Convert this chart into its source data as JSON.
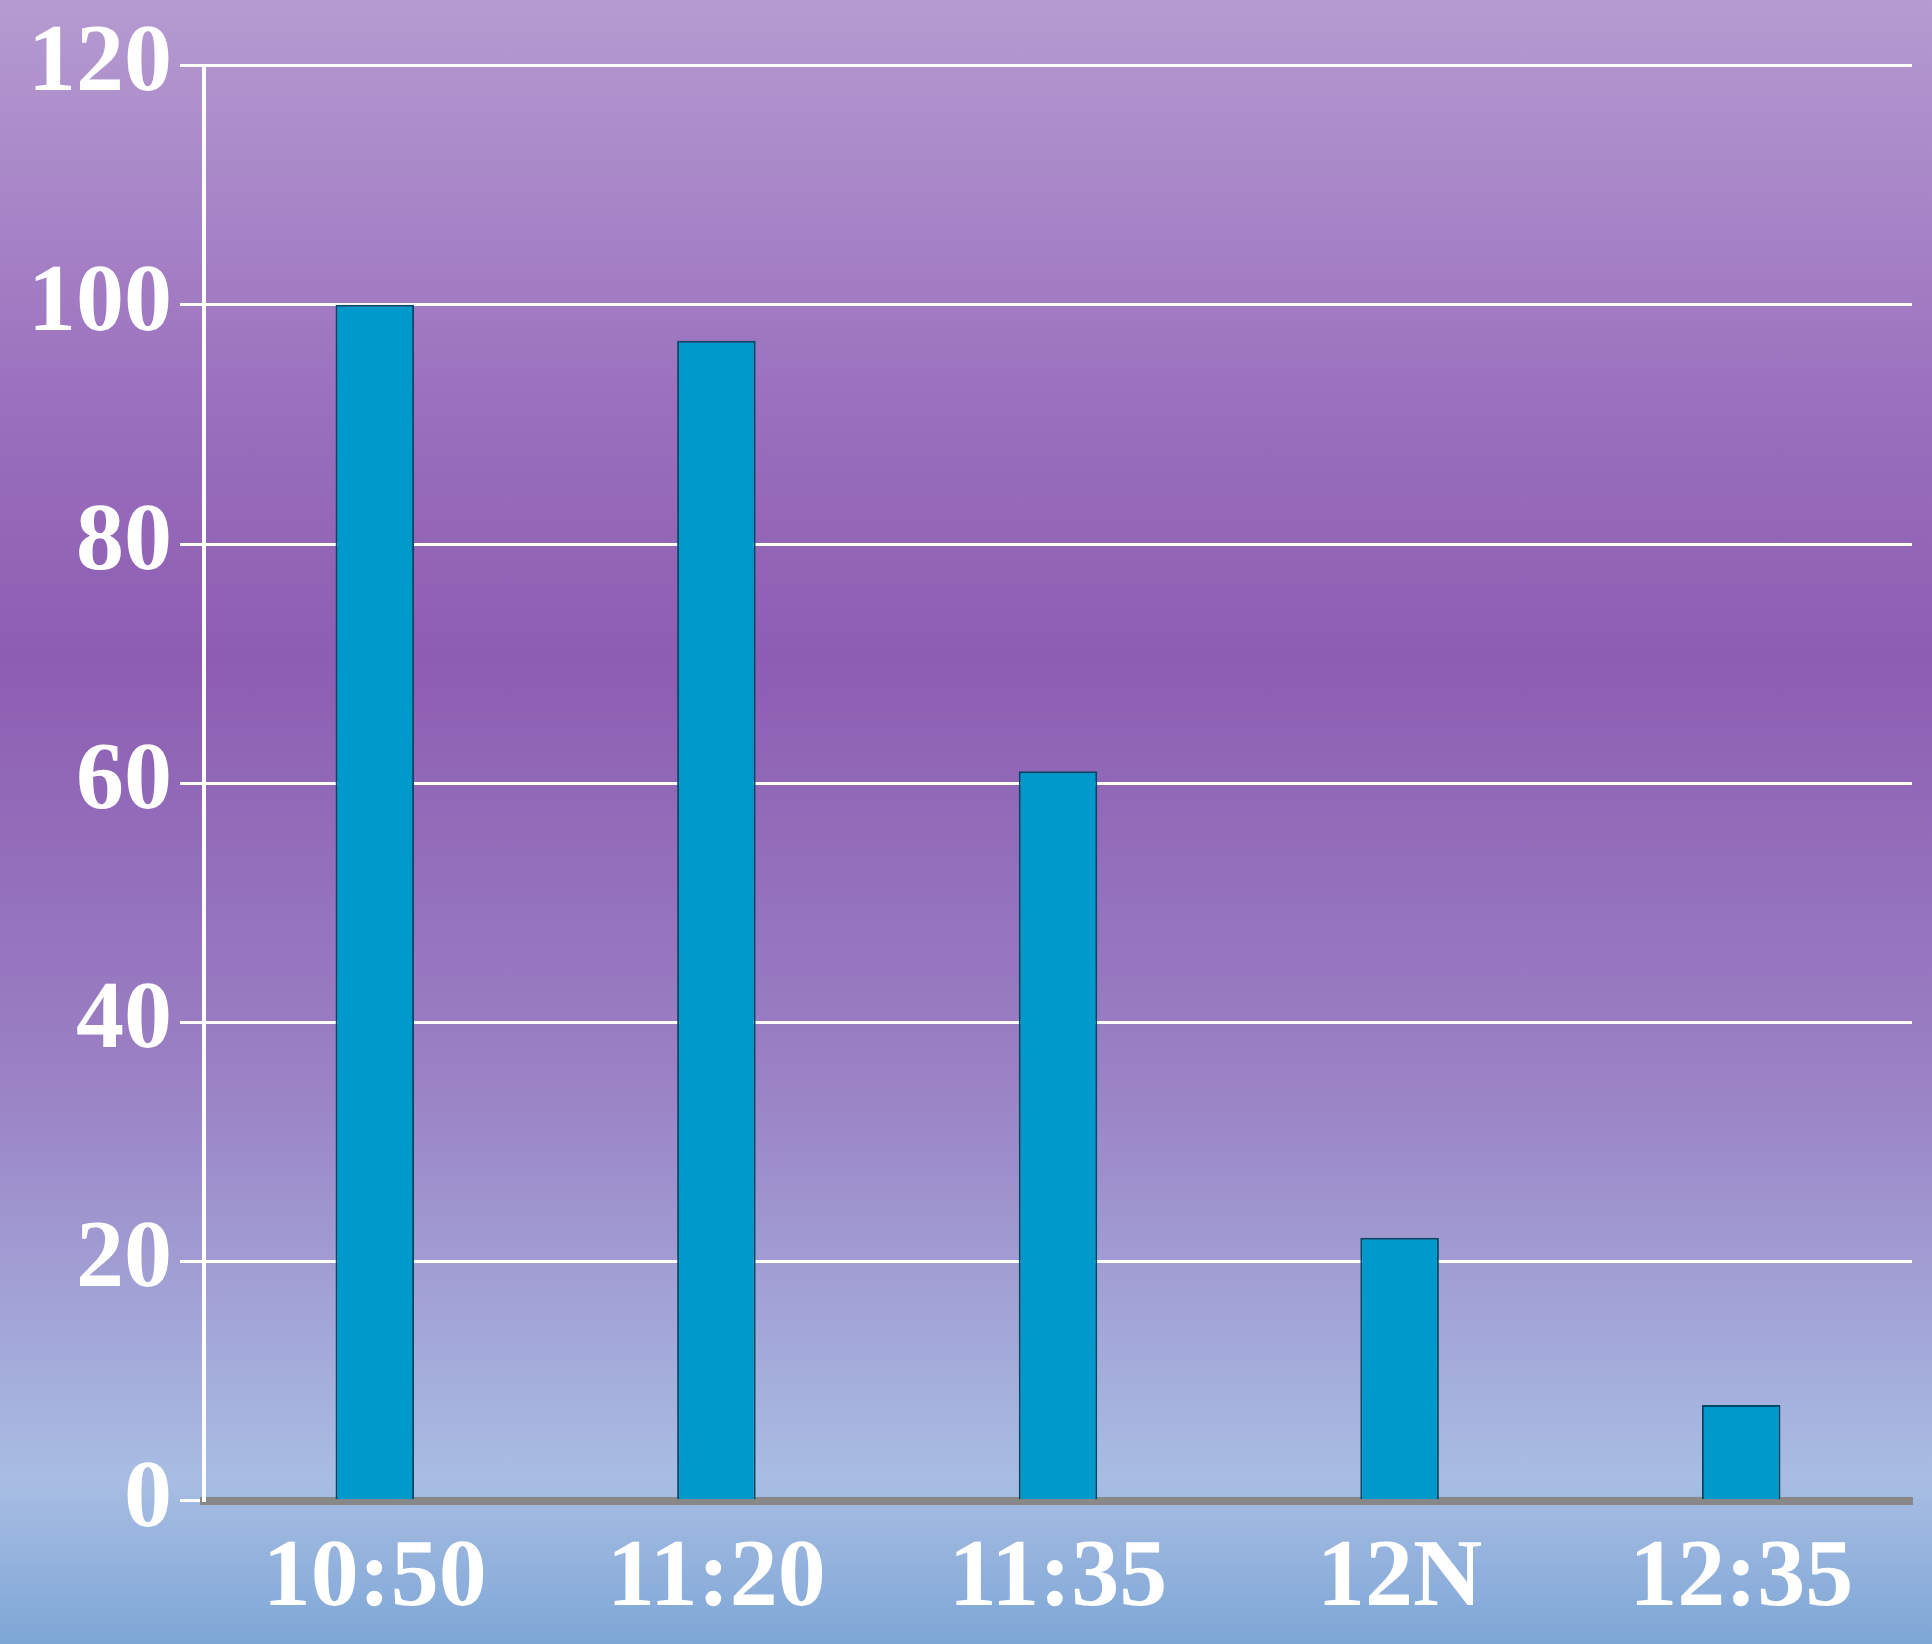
{
  "chart_data": {
    "type": "bar",
    "categories": [
      "10:50",
      "11:20",
      "11:35",
      "12N",
      "12:35"
    ],
    "values": [
      100,
      97,
      61,
      22,
      8
    ],
    "color": "#0099cc",
    "ylim": [
      0,
      120
    ],
    "yticks": [
      0,
      20,
      40,
      60,
      80,
      100,
      120
    ],
    "grid": "y"
  }
}
